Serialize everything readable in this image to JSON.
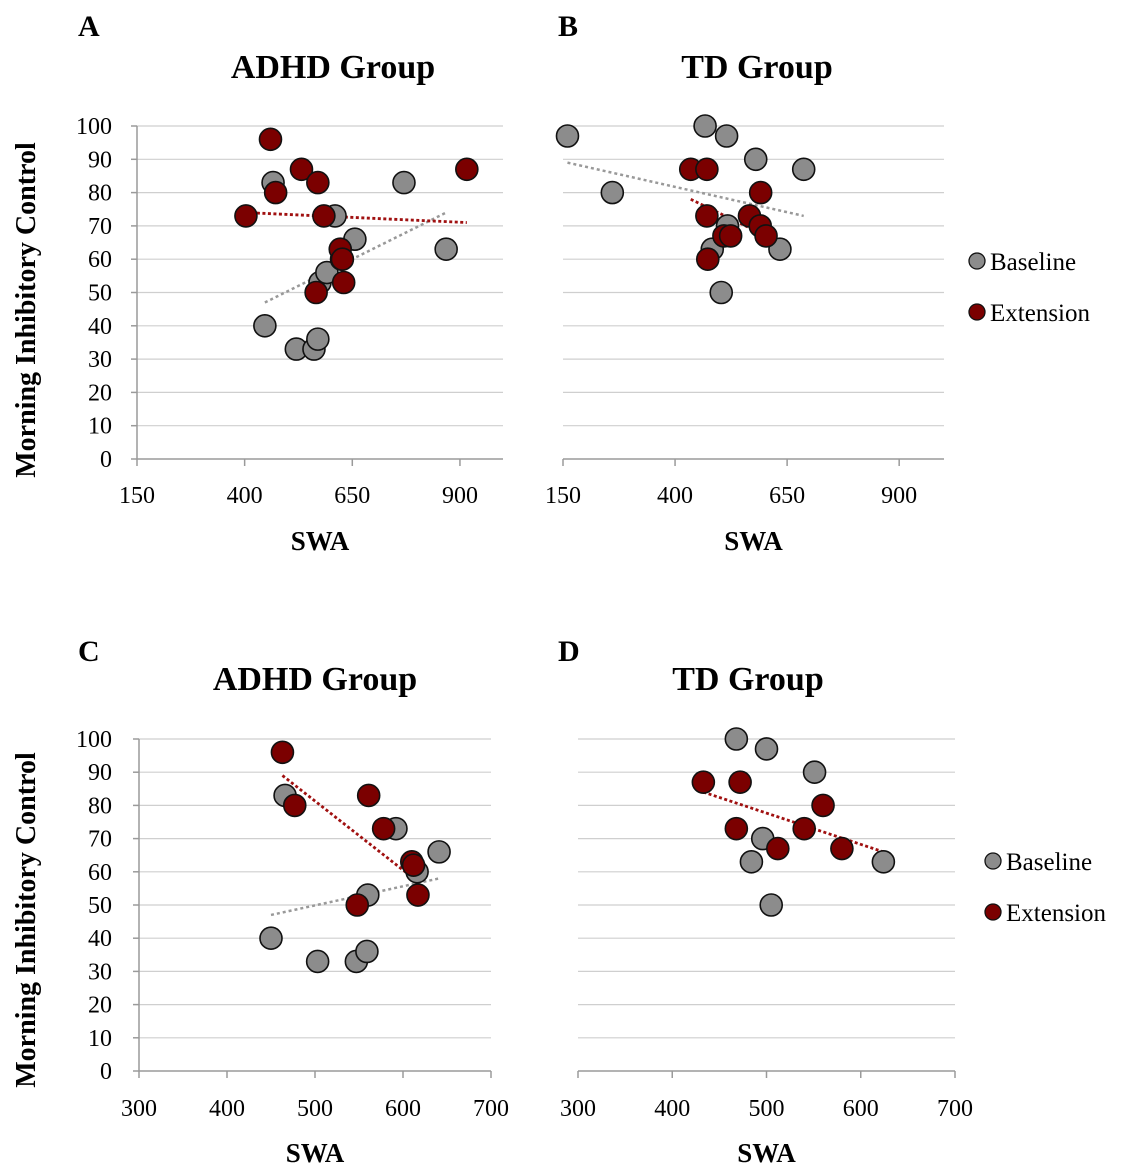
{
  "colors": {
    "baseline": "#8c8c8c",
    "extension": "#7b0000",
    "baseline_trend": "#999999",
    "extension_trend": "#a01010",
    "grid": "#cfcfcf",
    "axis": "#9a9a9a"
  },
  "legend": {
    "baseline": "Baseline",
    "extension": "Extension"
  },
  "chart_data": [
    {
      "type": "scatter",
      "panel": "A",
      "title": "ADHD Group",
      "xlabel": "SWA",
      "ylabel": "Morning Inhibitory Control",
      "xlim": [
        150,
        1000
      ],
      "ylim": [
        0,
        100
      ],
      "xticks": [
        150,
        400,
        650,
        900
      ],
      "yticks": [
        0,
        10,
        20,
        30,
        40,
        50,
        60,
        70,
        80,
        90,
        100
      ],
      "grid": true,
      "series": [
        {
          "name": "Baseline",
          "x": [
            447,
            466,
            520,
            561,
            570,
            575,
            591,
            610,
            625,
            656,
            770,
            868
          ],
          "y": [
            40,
            83,
            33,
            33,
            36,
            53,
            56,
            73,
            60,
            66,
            83,
            63
          ],
          "trend": {
            "x": [
              447,
              868
            ],
            "y": [
              47,
              74
            ]
          }
        },
        {
          "name": "Extension",
          "x": [
            403,
            460,
            472,
            532,
            566,
            570,
            584,
            622,
            627,
            630,
            916
          ],
          "y": [
            73,
            96,
            80,
            87,
            50,
            83,
            73,
            63,
            60,
            53,
            87
          ],
          "trend": {
            "x": [
              403,
              916
            ],
            "y": [
              74,
              71
            ]
          }
        }
      ]
    },
    {
      "type": "scatter",
      "panel": "B",
      "title": "TD Group",
      "xlabel": "SWA",
      "ylabel": "",
      "xlim": [
        150,
        1000
      ],
      "ylim": [
        0,
        100
      ],
      "xticks": [
        150,
        400,
        650,
        900
      ],
      "yticks": [
        0,
        10,
        20,
        30,
        40,
        50,
        60,
        70,
        80,
        90,
        100
      ],
      "grid": true,
      "series": [
        {
          "name": "Baseline",
          "x": [
            160,
            260,
            467,
            483,
            503,
            515,
            517,
            580,
            634,
            687
          ],
          "y": [
            97,
            80,
            100,
            63,
            50,
            97,
            70,
            90,
            63,
            87
          ],
          "trend": {
            "x": [
              160,
              687
            ],
            "y": [
              89,
              73
            ]
          }
        },
        {
          "name": "Extension",
          "x": [
            435,
            471,
            471,
            473,
            509,
            524,
            566,
            590,
            591,
            603
          ],
          "y": [
            87,
            87,
            73,
            60,
            67,
            67,
            73,
            70,
            80,
            67
          ],
          "trend": {
            "x": [
              435,
              603
            ],
            "y": [
              78,
              67
            ]
          }
        }
      ]
    },
    {
      "type": "scatter",
      "panel": "C",
      "title": "ADHD Group",
      "xlabel": "SWA",
      "ylabel": "Morning Inhibitory Control",
      "xlim": [
        300,
        700
      ],
      "ylim": [
        0,
        100
      ],
      "xticks": [
        300,
        400,
        500,
        600,
        700
      ],
      "yticks": [
        0,
        10,
        20,
        30,
        40,
        50,
        60,
        70,
        80,
        90,
        100
      ],
      "grid": true,
      "series": [
        {
          "name": "Baseline",
          "x": [
            450,
            466,
            503,
            547,
            559,
            560,
            592,
            616,
            641
          ],
          "y": [
            40,
            83,
            33,
            33,
            36,
            53,
            73,
            60,
            66
          ],
          "trend": {
            "x": [
              450,
              641
            ],
            "y": [
              47,
              58
            ]
          }
        },
        {
          "name": "Extension",
          "x": [
            463,
            477,
            548,
            561,
            578,
            610,
            612,
            617
          ],
          "y": [
            96,
            80,
            50,
            83,
            73,
            63,
            62,
            53
          ],
          "trend": {
            "x": [
              463,
              617
            ],
            "y": [
              89,
              57
            ]
          }
        }
      ]
    },
    {
      "type": "scatter",
      "panel": "D",
      "title": "TD Group",
      "xlabel": "SWA",
      "ylabel": "",
      "xlim": [
        300,
        700
      ],
      "ylim": [
        0,
        100
      ],
      "xticks": [
        300,
        400,
        500,
        600,
        700
      ],
      "yticks": [
        0,
        10,
        20,
        30,
        40,
        50,
        60,
        70,
        80,
        90,
        100
      ],
      "grid": true,
      "series": [
        {
          "name": "Baseline",
          "x": [
            468,
            484,
            496,
            500,
            505,
            551,
            624
          ],
          "y": [
            100,
            63,
            70,
            97,
            50,
            90,
            63
          ],
          "trend": null
        },
        {
          "name": "Extension",
          "x": [
            433,
            468,
            472,
            512,
            540,
            560,
            580
          ],
          "y": [
            87,
            73,
            87,
            67,
            73,
            80,
            67
          ],
          "trend": {
            "x": [
              433,
              624
            ],
            "y": [
              84,
              66
            ]
          }
        }
      ]
    }
  ]
}
